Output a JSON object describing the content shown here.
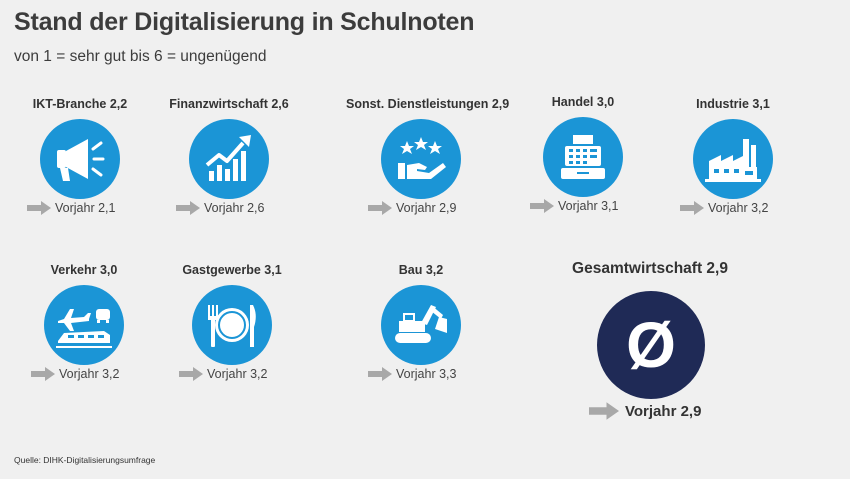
{
  "title": "Stand der Digitalisierung in Schulnoten",
  "subtitle": "von 1 = sehr gut bis 6 = ungenügend",
  "source": "Quelle: DIHK-Digitalisierungsumfrage",
  "colors": {
    "circle": "#1b95d6",
    "total_circle": "#1f2a56",
    "arrow": "#a8a8a8"
  },
  "chart_data": {
    "type": "table",
    "sectors": [
      {
        "label": "IKT-Branche 2,2",
        "grade": 2.2,
        "prev_label": "Vorjahr 2,1",
        "prev": 2.1,
        "icon": "megaphone-icon"
      },
      {
        "label": "Finanzwirtschaft 2,6",
        "grade": 2.6,
        "prev_label": "Vorjahr 2,6",
        "prev": 2.6,
        "icon": "growth-chart-icon"
      },
      {
        "label": "Sonst. Dienstleistungen 2,9",
        "grade": 2.9,
        "prev_label": "Vorjahr 2,9",
        "prev": 2.9,
        "icon": "stars-hand-icon"
      },
      {
        "label": "Handel 3,0",
        "grade": 3.0,
        "prev_label": "Vorjahr 3,1",
        "prev": 3.1,
        "icon": "cash-register-icon"
      },
      {
        "label": "Industrie 3,1",
        "grade": 3.1,
        "prev_label": "Vorjahr 3,2",
        "prev": 3.2,
        "icon": "factory-icon"
      },
      {
        "label": "Verkehr 3,0",
        "grade": 3.0,
        "prev_label": "Vorjahr 3,2",
        "prev": 3.2,
        "icon": "transport-icon"
      },
      {
        "label": "Gastgewerbe 3,1",
        "grade": 3.1,
        "prev_label": "Vorjahr 3,2",
        "prev": 3.2,
        "icon": "plate-cutlery-icon"
      },
      {
        "label": "Bau 3,2",
        "grade": 3.2,
        "prev_label": "Vorjahr 3,3",
        "prev": 3.3,
        "icon": "excavator-icon"
      }
    ],
    "total": {
      "label": "Gesamtwirtschaft 2,9",
      "grade": 2.9,
      "prev_label": "Vorjahr 2,9",
      "prev": 2.9,
      "symbol": "Ø",
      "icon": "average-symbol-icon"
    }
  }
}
